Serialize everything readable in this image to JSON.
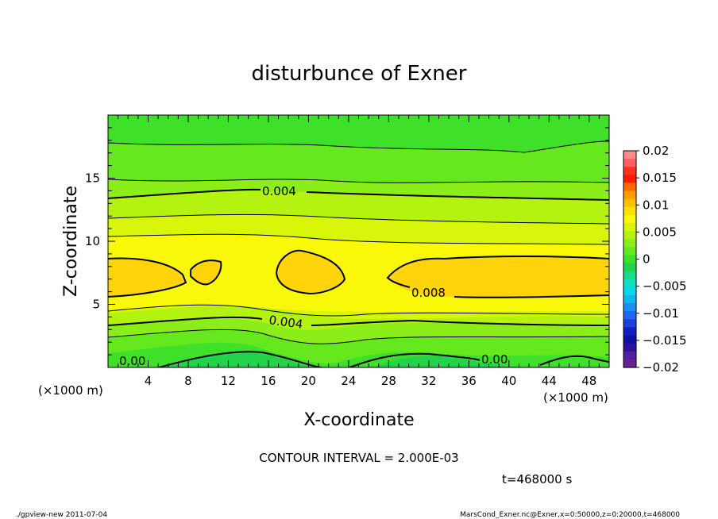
{
  "chart_data": {
    "type": "heatmap",
    "title": "disturbunce of Exner",
    "xlabel": "X-coordinate",
    "ylabel": "Z-coordinate",
    "x_unit": "(×1000 m)",
    "y_unit": "(×1000 m)",
    "xlim": [
      0,
      50
    ],
    "ylim": [
      0,
      20
    ],
    "x_ticks": [
      "4",
      "8",
      "12",
      "16",
      "20",
      "24",
      "28",
      "32",
      "36",
      "40",
      "44",
      "48"
    ],
    "y_ticks": [
      "5",
      "10",
      "15"
    ],
    "colorbar_ticks": [
      "0.02",
      "0.015",
      "0.01",
      "0.005",
      "0",
      "−0.005",
      "−0.01",
      "−0.015",
      "−0.02"
    ],
    "contour_labels": [
      {
        "text": "0.004",
        "x": 17.3,
        "z": 14.0
      },
      {
        "text": "0.008",
        "x": 32.0,
        "z": 5.8
      },
      {
        "text": "0.004",
        "x": 18.0,
        "z": 3.8
      },
      {
        "text": "0.00",
        "x": 2.0,
        "z": 0.3
      },
      {
        "text": "0.00",
        "x": 38.0,
        "z": 0.5
      }
    ],
    "contour_interval_text": "CONTOUR INTERVAL = 2.000E-03",
    "time_text": "t=468000 s",
    "footer_left": "./gpview-new   2011-07-04",
    "footer_right": "MarsCond_Exner.nc@Exner,x=0:50000,z=0:20000,t=468000",
    "grid": false,
    "colors": {
      "level_0": "#22d44a",
      "level_1": "#3ee02a",
      "level_2": "#66e81e",
      "level_3": "#8cee18",
      "level_4": "#b4f210",
      "level_5": "#d8f60a",
      "level_6": "#f8f808",
      "level_7": "#ffd40a",
      "line": "#000000"
    }
  }
}
